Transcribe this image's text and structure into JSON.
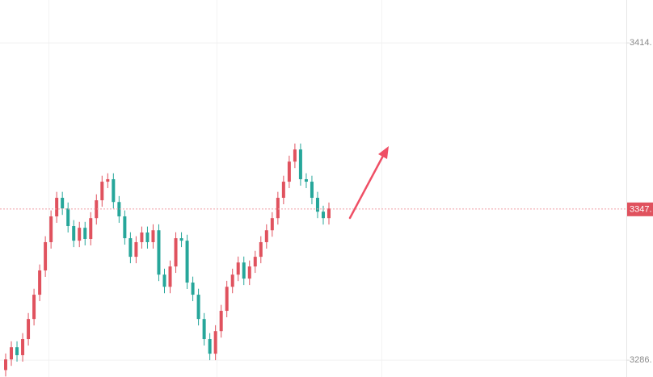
{
  "chart_data": {
    "type": "candlestick",
    "open": [
      3282.0,
      3286.3,
      3291.2,
      3288.0,
      3294.5,
      3302.6,
      3312.4,
      3322.2,
      3333.6,
      3344.0,
      3351.5,
      3347.2,
      3340.1,
      3334.2,
      3339.4,
      3334.9,
      3343.3,
      3350.5,
      3358.0,
      3359.0,
      3349.8,
      3344.0,
      3335.2,
      3327.7,
      3333.6,
      3337.5,
      3333.6,
      3338.4,
      3320.5,
      3315.6,
      3323.8,
      3335.2,
      3334.2,
      3317.3,
      3312.4,
      3302.6,
      3294.5,
      3288.6,
      3297.7,
      3305.9,
      3315.6,
      3320.5,
      3325.4,
      3318.9,
      3323.8,
      3327.7,
      3333.6,
      3338.4,
      3343.3,
      3351.5,
      3358.0,
      3366.1,
      3371.0,
      3359.0,
      3358.0,
      3351.5,
      3345.9,
      3343.3
    ],
    "high": [
      3288.7,
      3293.6,
      3293.6,
      3296.9,
      3305.0,
      3314.8,
      3324.6,
      3336.0,
      3346.4,
      3353.9,
      3353.9,
      3349.6,
      3342.5,
      3341.8,
      3341.8,
      3345.7,
      3352.9,
      3360.4,
      3361.4,
      3361.4,
      3352.2,
      3346.4,
      3337.6,
      3336.0,
      3339.9,
      3339.9,
      3340.8,
      3340.8,
      3322.9,
      3326.2,
      3337.6,
      3337.6,
      3336.6,
      3319.7,
      3314.8,
      3305.0,
      3296.9,
      3300.1,
      3308.3,
      3318.0,
      3322.9,
      3327.8,
      3327.8,
      3326.2,
      3330.1,
      3336.0,
      3340.8,
      3345.7,
      3353.9,
      3360.4,
      3368.5,
      3373.4,
      3373.4,
      3361.4,
      3360.4,
      3353.9,
      3348.3,
      3349.6
    ],
    "low": [
      3279.4,
      3283.7,
      3285.4,
      3285.4,
      3291.9,
      3300.0,
      3309.8,
      3319.6,
      3331.0,
      3341.4,
      3344.6,
      3337.5,
      3331.6,
      3331.6,
      3332.3,
      3332.3,
      3340.7,
      3347.9,
      3355.4,
      3347.2,
      3341.4,
      3332.6,
      3325.1,
      3325.1,
      3331.0,
      3331.0,
      3331.0,
      3317.9,
      3313.0,
      3313.0,
      3321.2,
      3331.6,
      3314.7,
      3309.8,
      3300.0,
      3291.9,
      3286.0,
      3286.0,
      3295.1,
      3303.3,
      3313.0,
      3317.9,
      3316.3,
      3316.3,
      3321.2,
      3325.1,
      3331.0,
      3335.8,
      3340.7,
      3348.9,
      3355.4,
      3363.5,
      3356.4,
      3355.4,
      3348.9,
      3343.3,
      3340.7,
      3340.7
    ],
    "close": [
      3286.3,
      3291.2,
      3288.0,
      3294.5,
      3302.6,
      3312.4,
      3322.2,
      3333.6,
      3344.0,
      3351.5,
      3347.2,
      3340.1,
      3334.2,
      3339.4,
      3334.9,
      3343.3,
      3350.5,
      3358.0,
      3359.0,
      3349.8,
      3344.0,
      3335.2,
      3327.7,
      3333.6,
      3337.5,
      3333.6,
      3338.4,
      3320.5,
      3315.6,
      3323.8,
      3335.2,
      3334.2,
      3317.3,
      3312.4,
      3302.6,
      3294.5,
      3288.6,
      3297.7,
      3305.9,
      3315.6,
      3320.5,
      3325.4,
      3318.9,
      3323.8,
      3327.7,
      3333.6,
      3338.4,
      3343.3,
      3351.5,
      3358.0,
      3366.1,
      3371.0,
      3359.0,
      3358.0,
      3351.5,
      3345.9,
      3343.3,
      3347.2
    ],
    "up_color": "#e0525e",
    "down_color": "#26a69a",
    "ylim": [
      3279.2,
      3431.3
    ],
    "yticks": [
      {
        "value": 3414,
        "label": "3414."
      },
      {
        "value": 3286,
        "label": "3286."
      }
    ],
    "last_price": {
      "value": 3347,
      "label": "3347."
    },
    "grid": true
  }
}
